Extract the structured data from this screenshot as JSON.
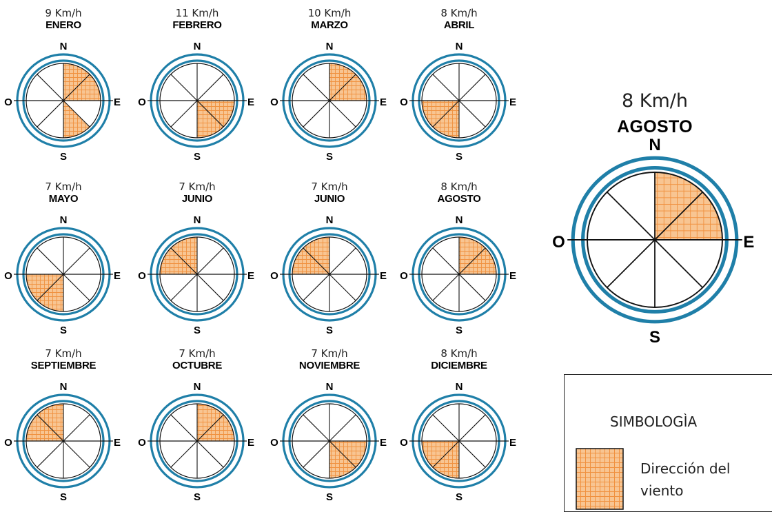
{
  "compass": {
    "north": "N",
    "south": "S",
    "east": "E",
    "west": "O"
  },
  "roses": [
    {
      "speed": "9 Km/h",
      "month": "ENERO",
      "sectors": [
        "NE-N",
        "NE-E",
        "SE-S"
      ]
    },
    {
      "speed": "11 Km/h",
      "month": "FEBRERO",
      "sectors": [
        "SE-E",
        "SE-S"
      ]
    },
    {
      "speed": "10 Km/h",
      "month": "MARZO",
      "sectors": [
        "NE-N",
        "NE-E"
      ]
    },
    {
      "speed": "8 Km/h",
      "month": "ABRIL",
      "sectors": [
        "SW-W",
        "SW-S"
      ]
    },
    {
      "speed": "7 Km/h",
      "month": "MAYO",
      "sectors": [
        "SW-W",
        "SW-S"
      ]
    },
    {
      "speed": "7 Km/h",
      "month": "JUNIO",
      "sectors": [
        "NW-N",
        "NW-W"
      ]
    },
    {
      "speed": "7 Km/h",
      "month": "JUNIO",
      "sectors": [
        "NW-N",
        "NW-W"
      ]
    },
    {
      "speed": "8 Km/h",
      "month": "AGOSTO",
      "sectors": [
        "NE-N",
        "NE-E"
      ]
    },
    {
      "speed": "7 Km/h",
      "month": "SEPTIEMBRE",
      "sectors": [
        "NW-N",
        "NW-W"
      ]
    },
    {
      "speed": "7 Km/h",
      "month": "OCTUBRE",
      "sectors": [
        "NE-N",
        "NE-E"
      ]
    },
    {
      "speed": "7 Km/h",
      "month": "NOVIEMBRE",
      "sectors": [
        "SE-E",
        "SE-S"
      ]
    },
    {
      "speed": "8 Km/h",
      "month": "DICIEMBRE",
      "sectors": [
        "SW-W",
        "SW-S"
      ]
    }
  ],
  "featured": {
    "speed": "8 Km/h",
    "month": "AGOSTO",
    "sectors": [
      "NE-N",
      "NE-E"
    ]
  },
  "legend": {
    "title": "SIMBOLOGÌA",
    "item": "Dirección del viento"
  },
  "colors": {
    "ring": "#1f7fa8",
    "fill": "#f8c592",
    "hatch": "#f0913f",
    "line": "#111111"
  }
}
